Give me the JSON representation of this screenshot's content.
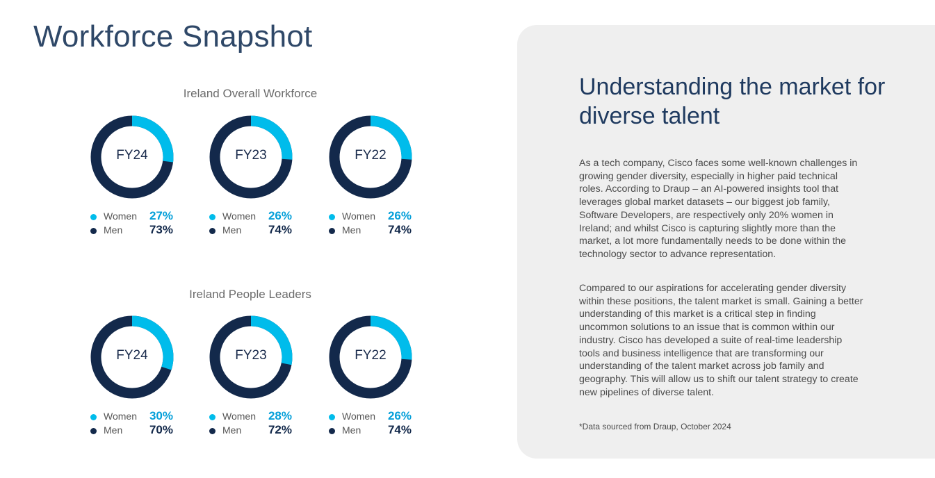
{
  "page": {
    "title": "Workforce Snapshot"
  },
  "colors": {
    "women": "#00bceb",
    "men": "#13294b",
    "title": "#2f4868",
    "panel_bg": "#efefef"
  },
  "chart_data": [
    {
      "type": "pie",
      "title": "Ireland Overall Workforce",
      "categories": [
        "FY24",
        "FY23",
        "FY22"
      ],
      "series": [
        {
          "name": "Women",
          "values": [
            27,
            26,
            26
          ]
        },
        {
          "name": "Men",
          "values": [
            73,
            74,
            74
          ]
        }
      ]
    },
    {
      "type": "pie",
      "title": "Ireland People Leaders",
      "categories": [
        "FY24",
        "FY23",
        "FY22"
      ],
      "series": [
        {
          "name": "Women",
          "values": [
            30,
            28,
            26
          ]
        },
        {
          "name": "Men",
          "values": [
            70,
            72,
            74
          ]
        }
      ]
    }
  ],
  "overall": {
    "title": "Ireland Overall Workforce",
    "items": [
      {
        "year": "FY24",
        "women_label": "Women",
        "women_pct": "27%",
        "men_label": "Men",
        "men_pct": "73%"
      },
      {
        "year": "FY23",
        "women_label": "Women",
        "women_pct": "26%",
        "men_label": "Men",
        "men_pct": "74%"
      },
      {
        "year": "FY22",
        "women_label": "Women",
        "women_pct": "26%",
        "men_label": "Men",
        "men_pct": "74%"
      }
    ]
  },
  "leaders": {
    "title": "Ireland People Leaders",
    "items": [
      {
        "year": "FY24",
        "women_label": "Women",
        "women_pct": "30%",
        "men_label": "Men",
        "men_pct": "70%"
      },
      {
        "year": "FY23",
        "women_label": "Women",
        "women_pct": "28%",
        "men_label": "Men",
        "men_pct": "72%"
      },
      {
        "year": "FY22",
        "women_label": "Women",
        "women_pct": "26%",
        "men_label": "Men",
        "men_pct": "74%"
      }
    ]
  },
  "panel": {
    "heading": "Understanding the market for diverse talent",
    "paragraph1": "As a tech company, Cisco faces some well-known challenges in growing gender diversity, especially in higher paid technical roles. According to Draup – an AI-powered insights tool that leverages global market datasets – our biggest job family, Software Developers, are respectively only 20% women in Ireland; and whilst Cisco is capturing slightly more than the market, a lot more fundamentally needs to be done within the technology sector to advance representation.",
    "paragraph2": "Compared to our aspirations for accelerating gender diversity within these positions, the talent market is small. Gaining a better understanding of this market is a critical step in finding uncommon solutions to an issue that is common within our industry. Cisco has developed a suite of real-time leadership tools and business intelligence that are transforming our understanding of the talent market across job family and geography. This will allow us to shift our talent strategy to create new pipelines of diverse talent.",
    "footnote": "*Data sourced from Draup, October 2024"
  }
}
